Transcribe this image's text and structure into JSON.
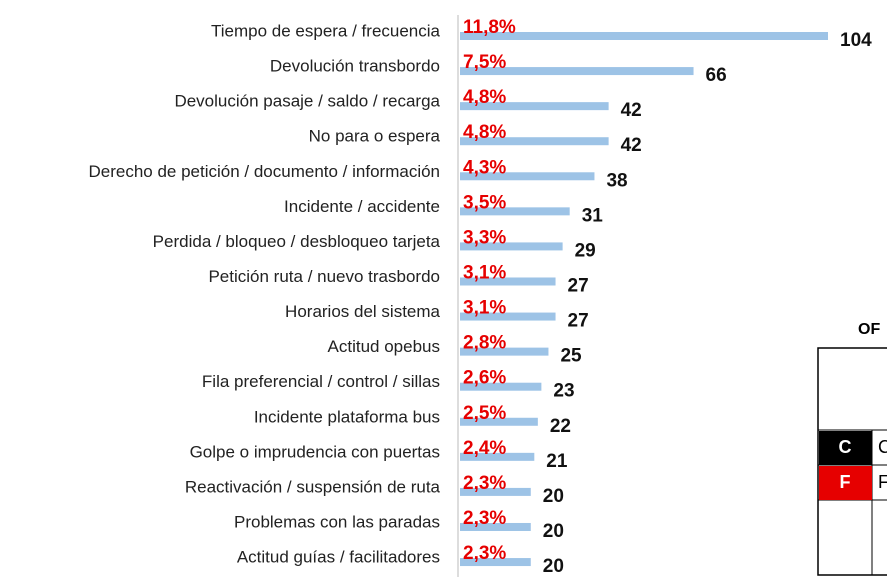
{
  "chart_data": {
    "type": "bar",
    "orientation": "horizontal",
    "color": "#9dc3e6",
    "categories": [
      "Tiempo de espera / frecuencia",
      "Devolución transbordo",
      "Devolución pasaje / saldo / recarga",
      "No para o espera",
      "Derecho de petición / documento / información",
      "Incidente / accidente",
      "Perdida / bloqueo / desbloqueo tarjeta",
      "Petición ruta / nuevo trasbordo",
      "Horarios del sistema",
      "Actitud opebus",
      "Fila preferencial / control / sillas",
      "Incidente plataforma bus",
      "Golpe o imprudencia con puertas",
      "Reactivación / suspensión de ruta",
      "Problemas con las paradas",
      "Actitud guías / facilitadores"
    ],
    "values": [
      104,
      66,
      42,
      42,
      38,
      31,
      29,
      27,
      27,
      25,
      23,
      22,
      21,
      20,
      20,
      20
    ],
    "share_labels": [
      "11,8%",
      "7,5%",
      "4,8%",
      "4,8%",
      "4,3%",
      "3,5%",
      "3,3%",
      "3,1%",
      "3,1%",
      "2,8%",
      "2,6%",
      "2,5%",
      "2,4%",
      "2,3%",
      "2,3%",
      "2,3%"
    ]
  },
  "table": {
    "title": "OF",
    "rows": [
      [
        "C",
        "C"
      ],
      [
        "F",
        "F"
      ]
    ]
  }
}
